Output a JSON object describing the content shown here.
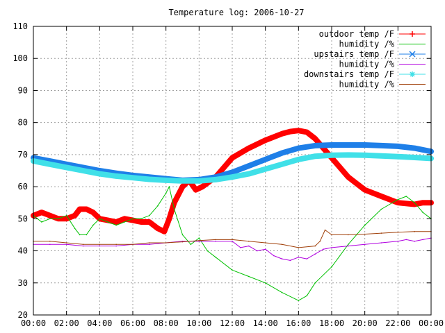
{
  "chart_data": {
    "type": "line",
    "title": "Temperature log: 2006-10-27",
    "xlabel": "",
    "ylabel": "",
    "xlim": [
      0,
      24
    ],
    "ylim": [
      20,
      110
    ],
    "grid": true,
    "legend_position": "top-right",
    "x_ticks": [
      {
        "value": 0,
        "label": "00:00"
      },
      {
        "value": 2,
        "label": "02:00"
      },
      {
        "value": 4,
        "label": "04:00"
      },
      {
        "value": 6,
        "label": "06:00"
      },
      {
        "value": 8,
        "label": "08:00"
      },
      {
        "value": 10,
        "label": "10:00"
      },
      {
        "value": 12,
        "label": "12:00"
      },
      {
        "value": 14,
        "label": "14:00"
      },
      {
        "value": 16,
        "label": "16:00"
      },
      {
        "value": 18,
        "label": "18:00"
      },
      {
        "value": 20,
        "label": "20:00"
      },
      {
        "value": 22,
        "label": "22:00"
      },
      {
        "value": 24,
        "label": "00:00"
      }
    ],
    "y_ticks": [
      {
        "value": 20,
        "label": "20"
      },
      {
        "value": 30,
        "label": "30"
      },
      {
        "value": 40,
        "label": "40"
      },
      {
        "value": 50,
        "label": "50"
      },
      {
        "value": 60,
        "label": "60"
      },
      {
        "value": 70,
        "label": "70"
      },
      {
        "value": 80,
        "label": "80"
      },
      {
        "value": 90,
        "label": "90"
      },
      {
        "value": 100,
        "label": "100"
      },
      {
        "value": 110,
        "label": "110"
      }
    ],
    "series": [
      {
        "name": "outdoor temp /F",
        "color": "#ff0000",
        "marker": "plus",
        "heavy": true,
        "x": [
          0,
          0.5,
          1,
          1.5,
          2,
          2.5,
          2.8,
          3.2,
          3.6,
          4,
          4.5,
          5,
          5.5,
          6,
          6.5,
          7,
          7.5,
          7.9,
          8.2,
          8.5,
          9,
          9.4,
          9.8,
          10.2,
          11,
          12,
          13,
          14,
          15,
          15.5,
          16,
          16.5,
          17,
          17.5,
          18,
          19,
          20,
          21,
          22,
          23,
          23.5,
          24
        ],
        "values": [
          51,
          52,
          51,
          50,
          50,
          51,
          53,
          53,
          52,
          50,
          49.5,
          49,
          50,
          49.5,
          49,
          49,
          47,
          46,
          50,
          55,
          60,
          62,
          59,
          60,
          63,
          69,
          72,
          74.5,
          76.5,
          77.2,
          77.5,
          77,
          75,
          72,
          69,
          63,
          59,
          57,
          55,
          54.5,
          55,
          55
        ]
      },
      {
        "name": "humidity /%",
        "color": "#00c000",
        "marker": "none",
        "heavy": false,
        "x": [
          0,
          0.5,
          1,
          1.5,
          2,
          2.5,
          2.8,
          3.2,
          3.6,
          4,
          4.5,
          5,
          5.5,
          6,
          6.5,
          7,
          7.5,
          8,
          8.2,
          8.5,
          9,
          9.5,
          10,
          10.5,
          11,
          12,
          13,
          14,
          15,
          16,
          16.5,
          17,
          18,
          19,
          20,
          21,
          22,
          22.5,
          23,
          23.5,
          24
        ],
        "values": [
          51,
          49,
          50,
          50,
          51,
          47,
          45,
          45,
          48,
          50,
          49,
          48,
          49,
          50,
          50,
          51,
          54,
          58,
          60,
          53,
          45,
          42,
          44,
          40,
          38,
          34,
          32,
          30,
          27,
          24.5,
          26,
          30,
          35,
          42,
          48,
          53,
          56,
          57,
          55,
          52,
          50
        ]
      },
      {
        "name": "upstairs temp /F",
        "color": "#1e7fe8",
        "marker": "x",
        "heavy": true,
        "x": [
          0,
          1,
          2,
          3,
          4,
          5,
          6,
          7,
          8,
          9,
          10,
          11,
          12,
          13,
          14,
          15,
          16,
          17,
          18,
          19,
          20,
          21,
          22,
          23,
          24
        ],
        "values": [
          69,
          68,
          67,
          66,
          65,
          64.2,
          63.5,
          63,
          62.5,
          62,
          62.2,
          63,
          64.5,
          66.5,
          68.5,
          70.5,
          72,
          72.8,
          73,
          73,
          73,
          72.8,
          72.6,
          72,
          71
        ]
      },
      {
        "name": "humidity /%",
        "color": "#b000e0",
        "marker": "none",
        "heavy": false,
        "x": [
          0,
          1,
          2,
          3,
          4,
          5,
          6,
          7,
          8,
          9,
          10,
          11,
          12,
          12.5,
          13,
          13.5,
          14,
          14.5,
          15,
          15.5,
          16,
          16.5,
          17,
          17.5,
          18,
          19,
          20,
          21,
          22,
          22.5,
          23,
          23.5,
          24
        ],
        "values": [
          42,
          42,
          42,
          41.5,
          41.5,
          41.5,
          42,
          42,
          42.5,
          43,
          43,
          43,
          43,
          41,
          41.5,
          40,
          40.5,
          38.5,
          37.5,
          37,
          38,
          37.5,
          39,
          40.5,
          41,
          41.5,
          42,
          42.5,
          43,
          43.5,
          43,
          43.5,
          44
        ]
      },
      {
        "name": "downstairs temp /F",
        "color": "#40e0e8",
        "marker": "star",
        "heavy": true,
        "x": [
          0,
          1,
          2,
          3,
          4,
          5,
          6,
          7,
          8,
          9,
          10,
          11,
          12,
          13,
          14,
          15,
          16,
          17,
          18,
          19,
          20,
          21,
          22,
          23,
          24
        ],
        "values": [
          68,
          67,
          66,
          65,
          64,
          63.3,
          62.8,
          62.3,
          62,
          61.8,
          61.8,
          62.2,
          63,
          64,
          65.5,
          67,
          68.5,
          69.5,
          69.8,
          69.9,
          69.8,
          69.6,
          69.4,
          69.1,
          68.8
        ]
      },
      {
        "name": "humidity /%",
        "color": "#a0400a",
        "marker": "none",
        "heavy": false,
        "x": [
          0,
          1,
          2,
          3,
          4,
          5,
          6,
          7,
          8,
          9,
          10,
          11,
          12,
          13,
          14,
          15,
          16,
          17,
          17.3,
          17.6,
          18,
          19,
          20,
          21,
          22,
          23,
          24
        ],
        "values": [
          43,
          43,
          42.5,
          42,
          42,
          42,
          42,
          42.5,
          42.5,
          42.8,
          43.2,
          43.5,
          43.5,
          43,
          42.5,
          42,
          41,
          41.5,
          43,
          46.5,
          45,
          45,
          45.2,
          45.5,
          45.8,
          46,
          46
        ]
      }
    ]
  }
}
